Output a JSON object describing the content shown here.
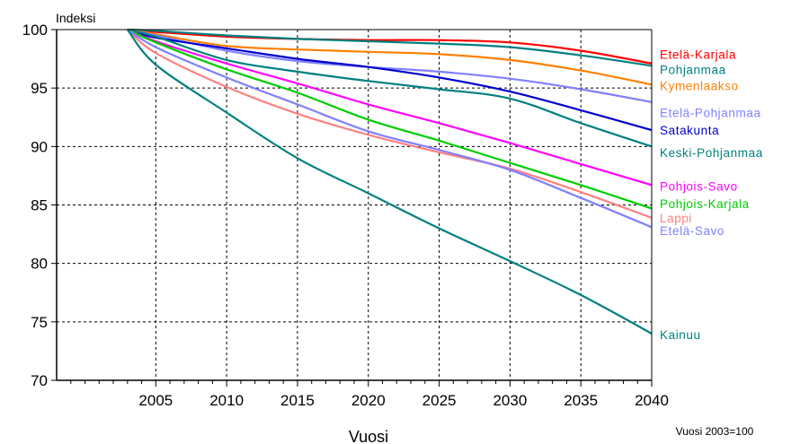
{
  "chart_data": {
    "type": "line",
    "ylabel": "Indeksi",
    "xlabel": "Vuosi",
    "note": "Vuosi 2003=100",
    "xlim": [
      1998,
      2040
    ],
    "ylim": [
      70,
      100
    ],
    "xticks": [
      2005,
      2010,
      2015,
      2020,
      2025,
      2030,
      2035,
      2040
    ],
    "yticks": [
      70,
      75,
      80,
      85,
      90,
      95,
      100
    ],
    "grid": true,
    "legend": "right-end labels",
    "x": [
      2003,
      2005,
      2010,
      2015,
      2020,
      2025,
      2030,
      2035,
      2040
    ],
    "series": [
      {
        "name": "Etelä-Karjala",
        "color": "#ff0000",
        "label_y": 97.9,
        "values": [
          100,
          99.8,
          99.4,
          99.2,
          99.1,
          99.1,
          98.9,
          98.2,
          97.1
        ]
      },
      {
        "name": "Pohjanmaa",
        "color": "#008080",
        "label_y": 96.6,
        "values": [
          100,
          99.9,
          99.5,
          99.2,
          99.0,
          98.8,
          98.5,
          97.8,
          96.9
        ]
      },
      {
        "name": "Kymenlaakso",
        "color": "#ff8000",
        "label_y": 95.2,
        "values": [
          100,
          99.6,
          98.6,
          98.3,
          98.1,
          97.9,
          97.4,
          96.5,
          95.3
        ]
      },
      {
        "name": "Etelä-Pohjanmaa",
        "color": "#8080ff",
        "label_y": 92.9,
        "values": [
          100,
          99.5,
          98.2,
          97.3,
          96.8,
          96.4,
          95.8,
          94.9,
          93.8
        ]
      },
      {
        "name": "Satakunta",
        "color": "#0000cc",
        "label_y": 91.4,
        "values": [
          100,
          99.3,
          98.4,
          97.5,
          96.8,
          95.9,
          94.7,
          93.1,
          91.4
        ]
      },
      {
        "name": "Keski-Pohjanmaa",
        "color": "#008080",
        "label_y": 89.5,
        "values": [
          100,
          99.4,
          97.4,
          96.4,
          95.6,
          94.9,
          94.1,
          92.0,
          90.0
        ]
      },
      {
        "name": "Pohjois-Savo",
        "color": "#ff00ff",
        "label_y": 86.6,
        "values": [
          100,
          99.0,
          97.1,
          95.4,
          93.6,
          92.0,
          90.3,
          88.5,
          86.7
        ]
      },
      {
        "name": "Pohjois-Karjala",
        "color": "#00cc00",
        "label_y": 85.1,
        "values": [
          100,
          98.9,
          96.6,
          94.6,
          92.3,
          90.5,
          88.6,
          86.7,
          84.7
        ]
      },
      {
        "name": "Lappi",
        "color": "#ff8080",
        "label_y": 83.9,
        "values": [
          100,
          98.0,
          95.1,
          92.8,
          91.0,
          89.5,
          88.1,
          86.1,
          83.9
        ]
      },
      {
        "name": "Etelä-Savo",
        "color": "#8080ff",
        "label_y": 82.8,
        "values": [
          100,
          98.5,
          95.9,
          93.6,
          91.3,
          89.7,
          88.0,
          85.6,
          83.1
        ]
      },
      {
        "name": "Kainuu",
        "color": "#008080",
        "label_y": 73.9,
        "values": [
          100,
          97.0,
          92.9,
          89.0,
          86.0,
          83.0,
          80.2,
          77.3,
          74.0
        ]
      }
    ]
  }
}
